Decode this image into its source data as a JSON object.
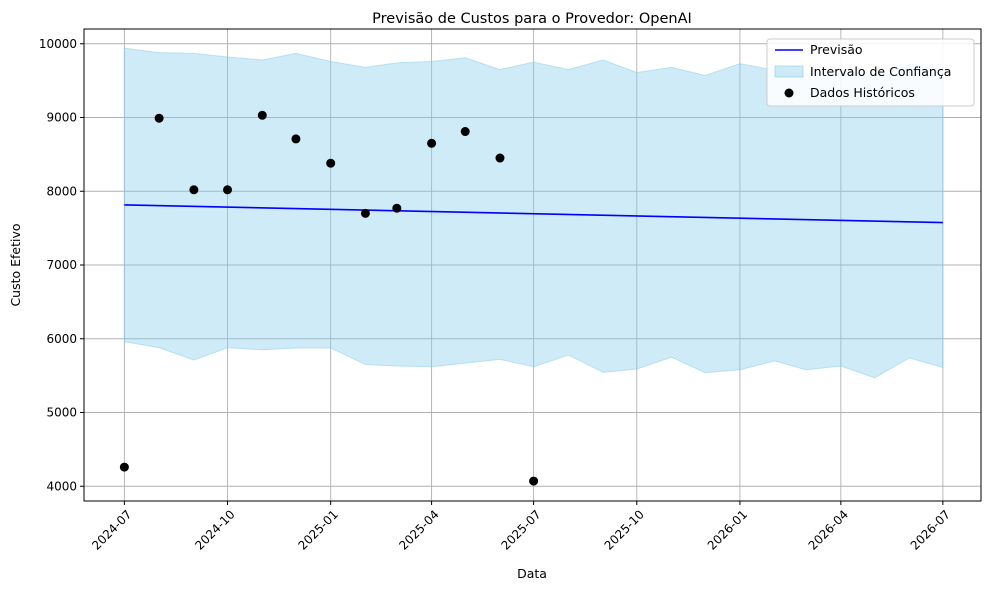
{
  "chart_data": {
    "type": "line",
    "title": "Previsão de Custos para o Provedor: OpenAI",
    "xlabel": "Data",
    "ylabel": "Custo Efetivo",
    "xlim": [
      "2024-05-26",
      "2026-08-04"
    ],
    "ylim": [
      3800,
      10200
    ],
    "x_ticks": [
      "2024-07",
      "2024-10",
      "2025-01",
      "2025-04",
      "2025-07",
      "2025-10",
      "2026-01",
      "2026-04",
      "2026-07"
    ],
    "y_ticks": [
      4000,
      5000,
      6000,
      7000,
      8000,
      9000,
      10000
    ],
    "grid": true,
    "legend_position": "upper right",
    "colors": {
      "forecast": "#0000ff",
      "interval_fill": "#87ceeb",
      "historical": "#000000",
      "grid": "#b0b0b0"
    },
    "series": [
      {
        "name": "Previsão",
        "kind": "line",
        "points": [
          {
            "x": "2024-07-01",
            "y": 7815
          },
          {
            "x": "2026-07-01",
            "y": 7575
          }
        ]
      },
      {
        "name": "Intervalo de Confiança",
        "kind": "band",
        "points": [
          {
            "x": "2024-07-01",
            "lower": 5960,
            "upper": 9940
          },
          {
            "x": "2024-08-01",
            "lower": 5880,
            "upper": 9880
          },
          {
            "x": "2024-09-01",
            "lower": 5710,
            "upper": 9870
          },
          {
            "x": "2024-10-01",
            "lower": 5880,
            "upper": 9820
          },
          {
            "x": "2024-11-01",
            "lower": 5850,
            "upper": 9780
          },
          {
            "x": "2024-12-01",
            "lower": 5875,
            "upper": 9870
          },
          {
            "x": "2025-01-01",
            "lower": 5875,
            "upper": 9760
          },
          {
            "x": "2025-02-01",
            "lower": 5650,
            "upper": 9680
          },
          {
            "x": "2025-03-01",
            "lower": 5630,
            "upper": 9740
          },
          {
            "x": "2025-04-01",
            "lower": 5620,
            "upper": 9760
          },
          {
            "x": "2025-05-01",
            "lower": 5670,
            "upper": 9810
          },
          {
            "x": "2025-06-01",
            "lower": 5720,
            "upper": 9650
          },
          {
            "x": "2025-07-01",
            "lower": 5620,
            "upper": 9750
          },
          {
            "x": "2025-08-01",
            "lower": 5780,
            "upper": 9650
          },
          {
            "x": "2025-09-01",
            "lower": 5545,
            "upper": 9780
          },
          {
            "x": "2025-10-01",
            "lower": 5590,
            "upper": 9610
          },
          {
            "x": "2025-11-01",
            "lower": 5750,
            "upper": 9680
          },
          {
            "x": "2025-12-01",
            "lower": 5540,
            "upper": 9570
          },
          {
            "x": "2026-01-01",
            "lower": 5580,
            "upper": 9730
          },
          {
            "x": "2026-02-01",
            "lower": 5700,
            "upper": 9640
          },
          {
            "x": "2026-03-01",
            "lower": 5580,
            "upper": 9590
          },
          {
            "x": "2026-04-01",
            "lower": 5630,
            "upper": 9640
          },
          {
            "x": "2026-05-01",
            "lower": 5470,
            "upper": 9530
          },
          {
            "x": "2026-06-01",
            "lower": 5740,
            "upper": 9720
          },
          {
            "x": "2026-07-01",
            "lower": 5610,
            "upper": 9660
          }
        ]
      },
      {
        "name": "Dados Históricos",
        "kind": "scatter",
        "points": [
          {
            "x": "2024-07-01",
            "y": 4260
          },
          {
            "x": "2024-08-01",
            "y": 8990
          },
          {
            "x": "2024-09-01",
            "y": 8020
          },
          {
            "x": "2024-10-01",
            "y": 8020
          },
          {
            "x": "2024-11-01",
            "y": 9030
          },
          {
            "x": "2024-12-01",
            "y": 8710
          },
          {
            "x": "2025-01-01",
            "y": 8380
          },
          {
            "x": "2025-02-01",
            "y": 7700
          },
          {
            "x": "2025-03-01",
            "y": 7770
          },
          {
            "x": "2025-04-01",
            "y": 8650
          },
          {
            "x": "2025-05-01",
            "y": 8810
          },
          {
            "x": "2025-06-01",
            "y": 8450
          },
          {
            "x": "2025-07-01",
            "y": 4070
          }
        ]
      }
    ]
  }
}
